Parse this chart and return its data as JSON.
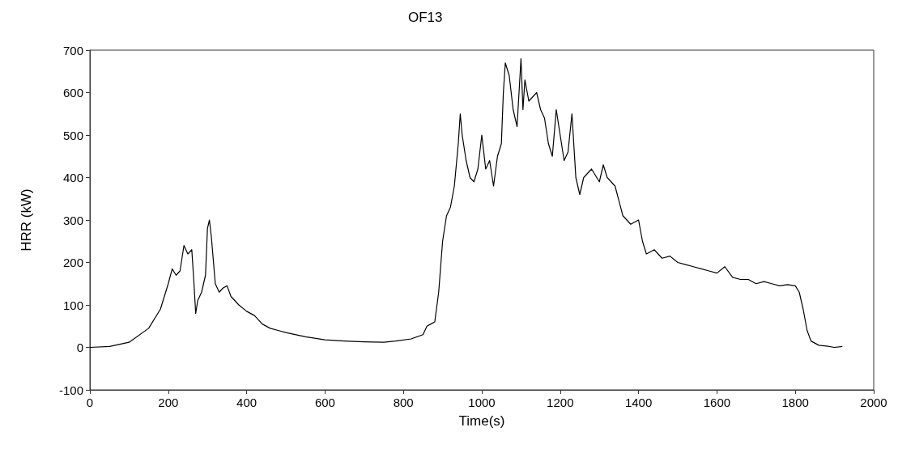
{
  "chart_data": {
    "type": "line",
    "title": "OF13",
    "xlabel": "Time(s)",
    "ylabel": "HRR (kW)",
    "xlim": [
      0,
      2000
    ],
    "xticks": [
      0,
      200,
      400,
      600,
      800,
      1000,
      1200,
      1400,
      1600,
      1800,
      2000
    ],
    "ylim": [
      -100,
      700
    ],
    "yticks": [
      -100,
      0,
      100,
      200,
      300,
      400,
      500,
      600,
      700
    ],
    "grid": false,
    "marker": "none",
    "line_style": "solid",
    "series": [
      {
        "color": "#000000",
        "x": [
          0,
          50,
          100,
          150,
          180,
          200,
          210,
          220,
          230,
          240,
          250,
          260,
          265,
          270,
          275,
          285,
          295,
          300,
          305,
          310,
          320,
          330,
          340,
          350,
          360,
          380,
          400,
          420,
          440,
          460,
          480,
          500,
          550,
          600,
          650,
          700,
          750,
          780,
          820,
          850,
          860,
          870,
          880,
          890,
          900,
          910,
          920,
          930,
          940,
          945,
          950,
          960,
          970,
          980,
          990,
          1000,
          1005,
          1010,
          1020,
          1030,
          1040,
          1050,
          1055,
          1060,
          1070,
          1080,
          1090,
          1100,
          1105,
          1110,
          1120,
          1140,
          1150,
          1160,
          1170,
          1180,
          1190,
          1200,
          1210,
          1220,
          1230,
          1240,
          1250,
          1260,
          1280,
          1300,
          1310,
          1320,
          1340,
          1360,
          1380,
          1400,
          1410,
          1420,
          1440,
          1460,
          1480,
          1500,
          1520,
          1540,
          1560,
          1580,
          1600,
          1620,
          1640,
          1660,
          1680,
          1700,
          1720,
          1740,
          1760,
          1780,
          1800,
          1810,
          1820,
          1830,
          1840,
          1860,
          1880,
          1900,
          1920
        ],
        "values": [
          0,
          2,
          12,
          45,
          90,
          150,
          185,
          170,
          180,
          240,
          220,
          230,
          160,
          80,
          110,
          130,
          170,
          280,
          300,
          260,
          150,
          130,
          140,
          145,
          120,
          100,
          85,
          75,
          55,
          45,
          40,
          35,
          25,
          18,
          15,
          13,
          12,
          15,
          20,
          30,
          50,
          55,
          60,
          130,
          250,
          310,
          330,
          380,
          480,
          550,
          500,
          440,
          400,
          390,
          420,
          500,
          460,
          420,
          440,
          380,
          450,
          480,
          600,
          670,
          640,
          560,
          520,
          680,
          560,
          630,
          580,
          600,
          560,
          540,
          480,
          450,
          560,
          500,
          440,
          460,
          550,
          400,
          360,
          400,
          420,
          390,
          430,
          400,
          380,
          310,
          290,
          300,
          250,
          220,
          230,
          210,
          215,
          200,
          195,
          190,
          185,
          180,
          175,
          190,
          165,
          160,
          160,
          150,
          155,
          150,
          145,
          148,
          145,
          130,
          90,
          40,
          15,
          5,
          3,
          0,
          2
        ]
      }
    ]
  }
}
